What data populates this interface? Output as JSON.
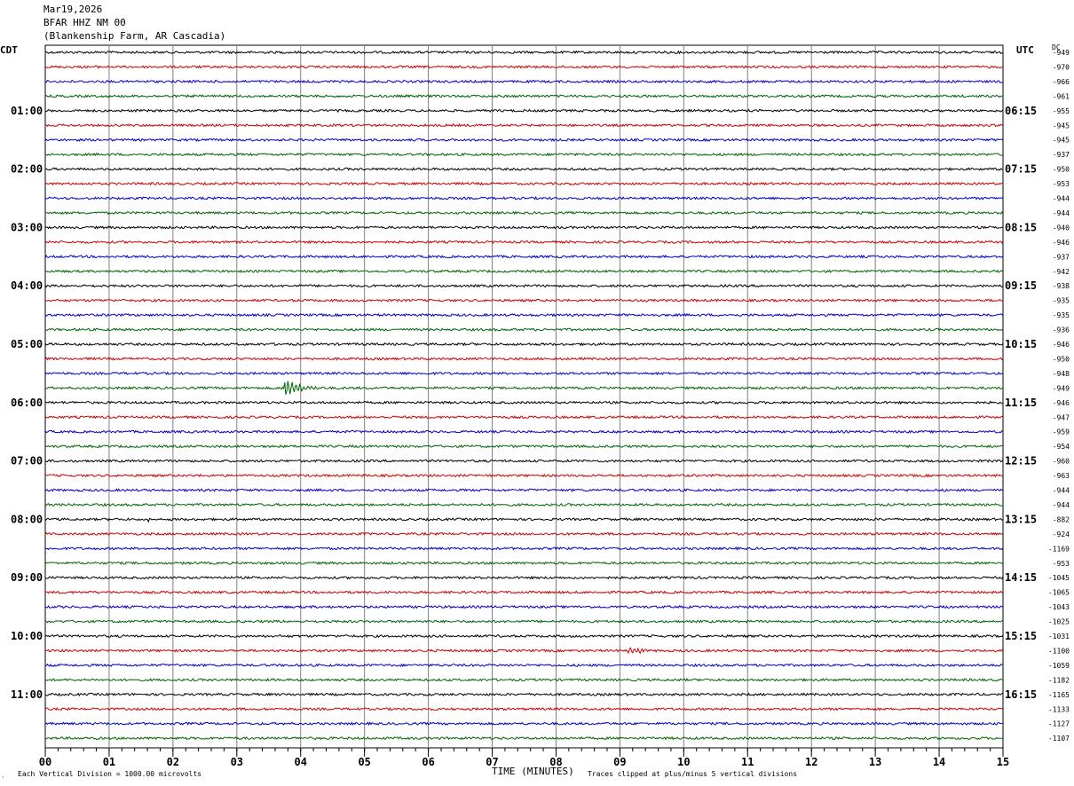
{
  "header": {
    "date": "Mar19,2026",
    "station": "BFAR HHZ NM 00",
    "location": "(Blankenship Farm, AR Cascadia)"
  },
  "left_zone_label": "CDT",
  "right_zone_label": "UTC",
  "dc_label": "DC",
  "footer": {
    "scale_note": "Each Vertical Division = 1000.00 microvolts",
    "xlabel": "TIME (MINUTES)",
    "clip_note": "Traces clipped at plus/minus 5 vertical divisions",
    "corner_mark": "‧"
  },
  "chart_data": {
    "type": "line",
    "title": "",
    "xlabel": "TIME (MINUTES)",
    "ylabel": "",
    "xlim": [
      0,
      15
    ],
    "x_ticks": [
      "00",
      "01",
      "02",
      "03",
      "04",
      "05",
      "06",
      "07",
      "08",
      "09",
      "10",
      "11",
      "12",
      "13",
      "14",
      "15"
    ],
    "grid": true,
    "trace_colors": [
      "#000000",
      "#cc0000",
      "#0000cc",
      "#006400"
    ],
    "left_hour_labels": [
      "01:00",
      "02:00",
      "03:00",
      "04:00",
      "05:00",
      "06:00",
      "07:00",
      "08:00",
      "09:00",
      "10:00",
      "11:00"
    ],
    "right_hour_labels": [
      "06:15",
      "07:15",
      "08:15",
      "09:15",
      "10:15",
      "11:15",
      "12:15",
      "13:15",
      "14:15",
      "15:15",
      "16:15"
    ],
    "dc_offsets": [
      -949,
      -970,
      -966,
      -961,
      -955,
      -945,
      -945,
      -937,
      -950,
      -953,
      -944,
      -944,
      -940,
      -946,
      -937,
      -942,
      -938,
      -935,
      -935,
      -936,
      -946,
      -950,
      -948,
      -949,
      -946,
      -947,
      -959,
      -954,
      -960,
      -963,
      -944,
      -944,
      -882,
      -924,
      -1169,
      -953,
      -1045,
      -1065,
      -1043,
      -1025,
      -1031,
      -1100,
      -1059,
      -1182,
      -1165,
      -1133,
      -1127,
      -1107
    ],
    "events": [
      {
        "trace_index": 23,
        "minute": 3.8,
        "amplitude": 2.5
      },
      {
        "trace_index": 41,
        "minute": 9.15,
        "amplitude": 1.2
      },
      {
        "trace_index": 32,
        "minute": 1.6,
        "amplitude": 0.5
      }
    ]
  }
}
